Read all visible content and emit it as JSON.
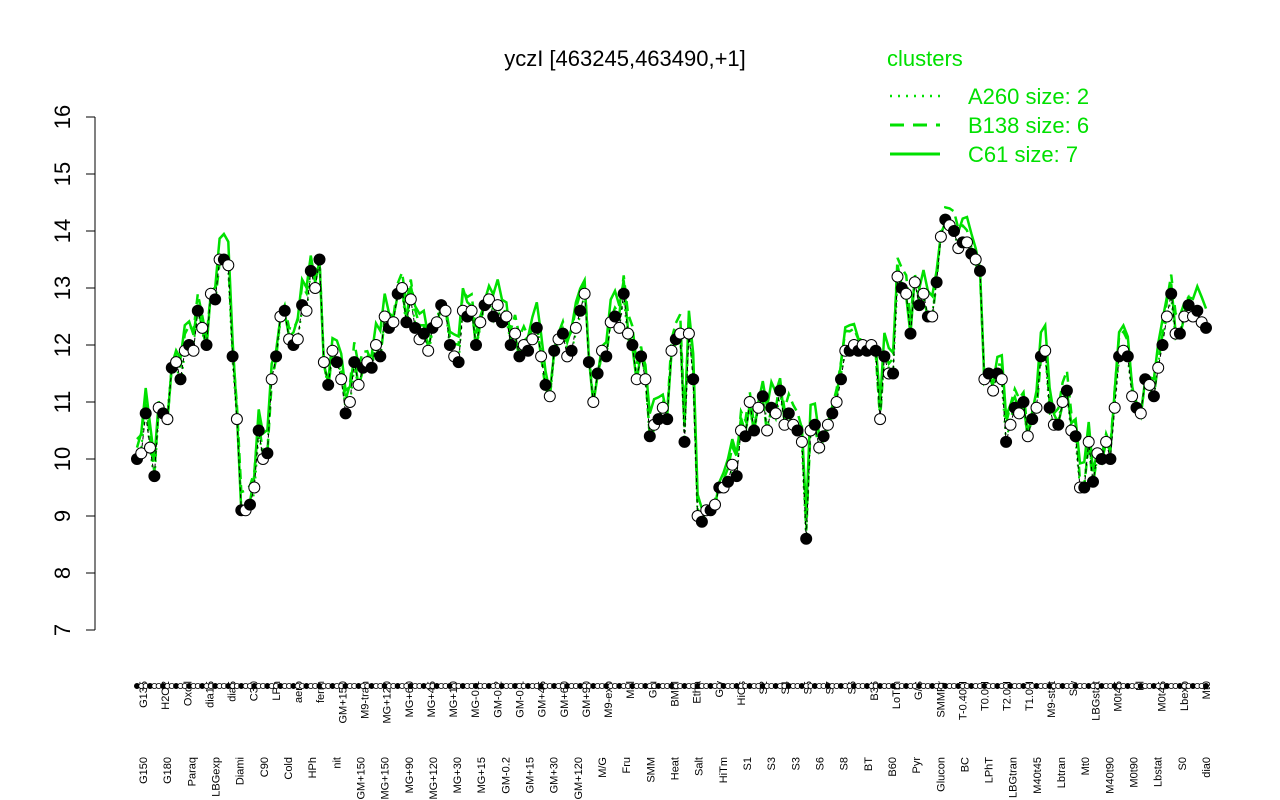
{
  "chart_data": {
    "type": "line",
    "title": "yczI [463245,463490,+1]",
    "xlabel": "",
    "ylabel": "",
    "ylim": [
      7,
      16
    ],
    "yticks": [
      7,
      8,
      9,
      10,
      11,
      12,
      13,
      14,
      15,
      16
    ],
    "grid": false,
    "legend_position": "top-right",
    "legend": {
      "title": "clusters",
      "items": [
        {
          "label": "A260 size: 2",
          "style": "dotted"
        },
        {
          "label": "B138 size: 6",
          "style": "dashed"
        },
        {
          "label": "C61 size: 7",
          "style": "solid"
        }
      ]
    },
    "colors": {
      "lines": "#00e000",
      "legend_text": "#00e000",
      "axis": "#000000"
    },
    "tick_labels_top": [
      "G135",
      "H2O2",
      "Oxctl",
      "dia15",
      "dia5",
      "C30",
      "LPh",
      "aero",
      "ferm",
      "GM+150",
      "M9-tran",
      "MG+120",
      "MG+60",
      "MG+45",
      "MG+10",
      "MG-0.1",
      "GM-0.2",
      "GM-0.1",
      "GM+45",
      "GM+60",
      "GM+90",
      "M9-exp",
      "Mal",
      "Glu",
      "BMM",
      "Etha",
      "Gly",
      "HiOs",
      "S2",
      "S4",
      "S5",
      "S7",
      "S6",
      "B36",
      "LoTm",
      "G/S",
      "SMMPr",
      "T-0.40H",
      "T0.0H",
      "T2.0H",
      "T1.0H",
      "M9-stat",
      "Sw",
      "LBGstat",
      "M0t45",
      "Bl",
      "M0t45",
      "Lbexp",
      "Mt0"
    ],
    "tick_labels_bottom": [
      "G150",
      "G180",
      "Paraq",
      "LBGexp",
      "Diami",
      "C90",
      "Cold",
      "HPh",
      "nit",
      "GM+150",
      "MG+150",
      "MG+90",
      "MG+120",
      "MG+30",
      "MG+15",
      "GM-0.2",
      "GM+15",
      "GM+30",
      "GM+120",
      "M/G",
      "Fru",
      "SMM",
      "Heat",
      "Salt",
      "HiTm",
      "S1",
      "S3",
      "S3",
      "S6",
      "S8",
      "BT",
      "B60",
      "Pyr",
      "Glucon",
      "BC",
      "LPhT",
      "LBGtran",
      "M40t45",
      "Lbtran",
      "Mt0",
      "M40t90",
      "M0t90",
      "Lbstat",
      "S0",
      "dia0"
    ],
    "series": [
      {
        "values": [
          10.0,
          10.1,
          10.8,
          10.2,
          9.7,
          10.9,
          10.8,
          10.7,
          11.6,
          11.7,
          11.4,
          11.9,
          12.0,
          11.9,
          12.6,
          12.3,
          12.0,
          12.9,
          12.8,
          13.5,
          13.5,
          13.4,
          11.8,
          10.7,
          9.1,
          9.1,
          9.2,
          9.5,
          10.5,
          10.0,
          10.1,
          11.4,
          11.8,
          12.5,
          12.6,
          12.1,
          12.0,
          12.1,
          12.7,
          12.6,
          13.3,
          13.0,
          13.5,
          11.7,
          11.3,
          11.9,
          11.7,
          11.4,
          10.8,
          11.0,
          11.7,
          11.3,
          11.6,
          11.7,
          11.6,
          12.0,
          11.8,
          12.5,
          12.3,
          12.4,
          12.9,
          13.0,
          12.4,
          12.8,
          12.3,
          12.1,
          12.2,
          11.9,
          12.3,
          12.4,
          12.7,
          12.6,
          12.0,
          11.8,
          11.7,
          12.6,
          12.5,
          12.6,
          12.0,
          12.4,
          12.7,
          12.8,
          12.5,
          12.7,
          12.4,
          12.5,
          12.0,
          12.2,
          11.8,
          12.0,
          11.9,
          12.1,
          12.3,
          11.8,
          11.3,
          11.1,
          11.9,
          12.1,
          12.2,
          11.8,
          11.9,
          12.3,
          12.6,
          12.9,
          11.7,
          11.0,
          11.5,
          11.9,
          11.8,
          12.4,
          12.5,
          12.3,
          12.9,
          12.2,
          12.0,
          11.4,
          11.8,
          11.4,
          10.4,
          10.6,
          10.7,
          10.9,
          10.7,
          11.9,
          12.1,
          12.2,
          10.3,
          12.2,
          11.4,
          9.0,
          8.9,
          9.1,
          9.1,
          9.2,
          9.5,
          9.5,
          9.6,
          9.9,
          9.7,
          10.5,
          10.4,
          11.0,
          10.5,
          10.9,
          11.1,
          10.5,
          10.9,
          10.8,
          11.2,
          10.6,
          10.8,
          10.6,
          10.5,
          10.3,
          8.6,
          10.5,
          10.6,
          10.2,
          10.4,
          10.6,
          10.8,
          11.0,
          11.4,
          11.9,
          11.9,
          12.0,
          11.9,
          12.0,
          11.9,
          12.0,
          11.9,
          10.7,
          11.8,
          11.5,
          11.5,
          13.2,
          13.0,
          12.9,
          12.2,
          13.1,
          12.7,
          12.9,
          12.5,
          12.5,
          13.1,
          13.9,
          14.2,
          14.1,
          14.0,
          13.7,
          13.8,
          13.8,
          13.6,
          13.5,
          13.3,
          11.4,
          11.5,
          11.2,
          11.5,
          11.4,
          10.3,
          10.6,
          10.9,
          10.8,
          11.0,
          10.4,
          10.7,
          10.9,
          11.8,
          11.9,
          10.9,
          10.6,
          10.6,
          11.0,
          11.2,
          10.5,
          10.4,
          9.5,
          9.5,
          10.3,
          9.6,
          10.1,
          10.0,
          10.3,
          10.0,
          10.9,
          11.8,
          11.9,
          11.8,
          11.1,
          10.9,
          10.8,
          11.4,
          11.3,
          11.1,
          11.6,
          12.0,
          12.5,
          12.9,
          12.2,
          12.2,
          12.5,
          12.7,
          12.5,
          12.6,
          12.4,
          12.3
        ],
        "style": "solid"
      }
    ]
  }
}
